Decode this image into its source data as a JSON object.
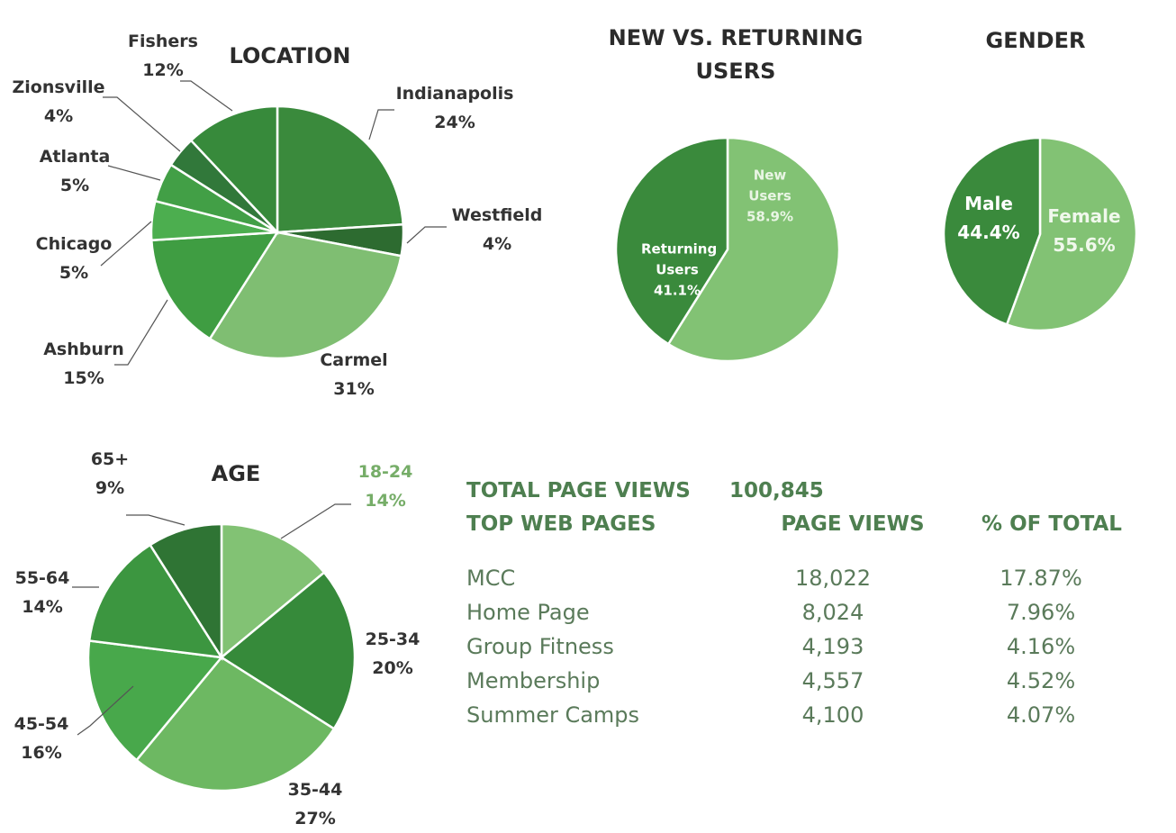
{
  "chart_data": [
    {
      "type": "pie",
      "title": "LOCATION",
      "categories": [
        "Indianapolis",
        "Westfield",
        "Carmel",
        "Ashburn",
        "Chicago",
        "Atlanta",
        "Zionsville",
        "Fishers"
      ],
      "values": [
        24,
        4,
        31,
        15,
        5,
        5,
        4,
        12
      ],
      "value_labels": [
        "24%",
        "4%",
        "31%",
        "15%",
        "5%",
        "5%",
        "4%",
        "12%"
      ],
      "colors": [
        "#3a8a3c",
        "#2d6b30",
        "#7fbe72",
        "#3f9d42",
        "#4cae4f",
        "#429f46",
        "#31783a",
        "#378a3b"
      ]
    },
    {
      "type": "pie",
      "title": "NEW VS. RETURNING USERS",
      "categories": [
        "New Users",
        "Returning Users"
      ],
      "values": [
        58.9,
        41.1
      ],
      "value_labels": [
        "58.9%",
        "41.1%"
      ],
      "colors": [
        "#82c274",
        "#3a8a3c"
      ]
    },
    {
      "type": "pie",
      "title": "GENDER",
      "categories": [
        "Female",
        "Male"
      ],
      "values": [
        55.6,
        44.4
      ],
      "value_labels": [
        "55.6%",
        "44.4%"
      ],
      "colors": [
        "#82c274",
        "#3a8a3c"
      ]
    },
    {
      "type": "pie",
      "title": "AGE",
      "categories": [
        "18-24",
        "25-34",
        "35-44",
        "45-54",
        "55-64",
        "65+"
      ],
      "values": [
        14,
        20,
        27,
        16,
        14,
        9
      ],
      "value_labels": [
        "14%",
        "20%",
        "27%",
        "16%",
        "14%",
        "9%"
      ],
      "colors": [
        "#82c274",
        "#368a3a",
        "#6db862",
        "#48a84b",
        "#3c9640",
        "#2f7434"
      ]
    }
  ],
  "table": {
    "total_label": "TOTAL PAGE VIEWS",
    "total_value": "100,845",
    "header": [
      "TOP WEB PAGES",
      "PAGE VIEWS",
      "% OF TOTAL"
    ],
    "rows": [
      [
        "MCC",
        "18,022",
        "17.87%"
      ],
      [
        "Home Page",
        "8,024",
        "7.96%"
      ],
      [
        "Group Fitness",
        "4,193",
        "4.16%"
      ],
      [
        "Membership",
        "4,557",
        "4.52%"
      ],
      [
        "Summer Camps",
        "4,100",
        "4.07%"
      ]
    ]
  }
}
